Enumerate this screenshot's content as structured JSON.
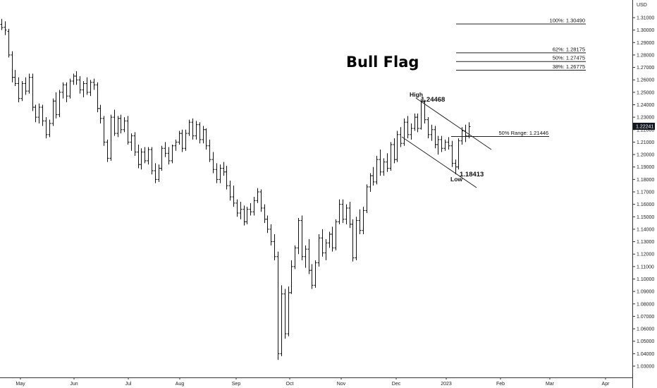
{
  "chart_data": {
    "type": "ohlc",
    "title": "Bull Flag",
    "currency_label": "USD",
    "price_marker": "1.22241",
    "y_range": [
      1.025,
      1.3175
    ],
    "y_ticks": [
      "1.31000",
      "1.30000",
      "1.29000",
      "1.28000",
      "1.27000",
      "1.26000",
      "1.25000",
      "1.24000",
      "1.23000",
      "1.22000",
      "1.21000",
      "1.20000",
      "1.19000",
      "1.18000",
      "1.17000",
      "1.16000",
      "1.15000",
      "1.14000",
      "1.13000",
      "1.12000",
      "1.11000",
      "1.10000",
      "1.09000",
      "1.08000",
      "1.07000",
      "1.06000",
      "1.05000",
      "1.04000",
      "1.03000"
    ],
    "x_tick_labels": [
      "May",
      "Jun",
      "Jul",
      "Aug",
      "Sep",
      "Oct",
      "Nov",
      "Dec",
      "2023",
      "Feb",
      "Mar",
      "Apr"
    ],
    "fib_levels": [
      {
        "label": "100%: 1.30490",
        "value": 1.3049
      },
      {
        "label": "62%: 1.28175",
        "value": 1.28175
      },
      {
        "label": "50%: 1.27475",
        "value": 1.27475
      },
      {
        "label": "38%: 1.26775",
        "value": 1.26775
      }
    ],
    "range_line": {
      "label": "50% Range: 1.21446",
      "value": 1.21446
    },
    "annotations": {
      "high": "High",
      "high_value": "1.24468",
      "low": "Low",
      "low_value": "1.18413"
    },
    "bars": [
      [
        1.3046,
        1.309,
        1.3,
        1.302
      ],
      [
        1.3023,
        1.307,
        1.296,
        1.3
      ],
      [
        1.299,
        1.301,
        1.278,
        1.28
      ],
      [
        1.28,
        1.283,
        1.258,
        1.262
      ],
      [
        1.262,
        1.268,
        1.255,
        1.257
      ],
      [
        1.257,
        1.262,
        1.242,
        1.245
      ],
      [
        1.245,
        1.259,
        1.243,
        1.257
      ],
      [
        1.257,
        1.262,
        1.248,
        1.251
      ],
      [
        1.251,
        1.265,
        1.249,
        1.262
      ],
      [
        1.262,
        1.265,
        1.235,
        1.238
      ],
      [
        1.238,
        1.24,
        1.226,
        1.23
      ],
      [
        1.23,
        1.241,
        1.225,
        1.238
      ],
      [
        1.238,
        1.24,
        1.223,
        1.227
      ],
      [
        1.227,
        1.23,
        1.213,
        1.216
      ],
      [
        1.216,
        1.228,
        1.214,
        1.225
      ],
      [
        1.225,
        1.245,
        1.223,
        1.243
      ],
      [
        1.243,
        1.25,
        1.229,
        1.232
      ],
      [
        1.232,
        1.252,
        1.23,
        1.25
      ],
      [
        1.25,
        1.258,
        1.245,
        1.256
      ],
      [
        1.256,
        1.258,
        1.242,
        1.247
      ],
      [
        1.247,
        1.261,
        1.245,
        1.259
      ],
      [
        1.259,
        1.265,
        1.256,
        1.263
      ],
      [
        1.263,
        1.267,
        1.256,
        1.26
      ],
      [
        1.26,
        1.263,
        1.249,
        1.252
      ],
      [
        1.252,
        1.259,
        1.246,
        1.257
      ],
      [
        1.257,
        1.262,
        1.248,
        1.25
      ],
      [
        1.25,
        1.26,
        1.247,
        1.258
      ],
      [
        1.258,
        1.261,
        1.252,
        1.256
      ],
      [
        1.256,
        1.258,
        1.234,
        1.237
      ],
      [
        1.237,
        1.24,
        1.225,
        1.229
      ],
      [
        1.229,
        1.231,
        1.207,
        1.21
      ],
      [
        1.21,
        1.212,
        1.194,
        1.197
      ],
      [
        1.197,
        1.232,
        1.195,
        1.23
      ],
      [
        1.23,
        1.236,
        1.215,
        1.217
      ],
      [
        1.217,
        1.231,
        1.214,
        1.229
      ],
      [
        1.229,
        1.232,
        1.217,
        1.22
      ],
      [
        1.22,
        1.23,
        1.218,
        1.227
      ],
      [
        1.227,
        1.231,
        1.208,
        1.21
      ],
      [
        1.21,
        1.217,
        1.203,
        1.215
      ],
      [
        1.215,
        1.218,
        1.199,
        1.202
      ],
      [
        1.202,
        1.208,
        1.189,
        1.192
      ],
      [
        1.192,
        1.205,
        1.188,
        1.202
      ],
      [
        1.202,
        1.206,
        1.193,
        1.195
      ],
      [
        1.195,
        1.206,
        1.192,
        1.204
      ],
      [
        1.204,
        1.206,
        1.184,
        1.187
      ],
      [
        1.187,
        1.193,
        1.177,
        1.18
      ],
      [
        1.18,
        1.192,
        1.178,
        1.189
      ],
      [
        1.189,
        1.207,
        1.187,
        1.205
      ],
      [
        1.205,
        1.21,
        1.198,
        1.201
      ],
      [
        1.201,
        1.206,
        1.192,
        1.195
      ],
      [
        1.195,
        1.208,
        1.193,
        1.207
      ],
      [
        1.207,
        1.212,
        1.203,
        1.21
      ],
      [
        1.21,
        1.219,
        1.208,
        1.217
      ],
      [
        1.217,
        1.22,
        1.202,
        1.205
      ],
      [
        1.205,
        1.22,
        1.203,
        1.217
      ],
      [
        1.217,
        1.228,
        1.215,
        1.226
      ],
      [
        1.226,
        1.229,
        1.212,
        1.215
      ],
      [
        1.215,
        1.227,
        1.212,
        1.224
      ],
      [
        1.224,
        1.226,
        1.209,
        1.212
      ],
      [
        1.212,
        1.223,
        1.209,
        1.22
      ],
      [
        1.22,
        1.221,
        1.204,
        1.207
      ],
      [
        1.207,
        1.212,
        1.194,
        1.196
      ],
      [
        1.196,
        1.202,
        1.185,
        1.188
      ],
      [
        1.188,
        1.193,
        1.177,
        1.18
      ],
      [
        1.18,
        1.192,
        1.177,
        1.189
      ],
      [
        1.189,
        1.194,
        1.183,
        1.186
      ],
      [
        1.186,
        1.191,
        1.172,
        1.175
      ],
      [
        1.175,
        1.179,
        1.163,
        1.166
      ],
      [
        1.166,
        1.175,
        1.158,
        1.161
      ],
      [
        1.161,
        1.164,
        1.15,
        1.153
      ],
      [
        1.153,
        1.162,
        1.148,
        1.156
      ],
      [
        1.156,
        1.159,
        1.143,
        1.146
      ],
      [
        1.146,
        1.158,
        1.144,
        1.156
      ],
      [
        1.156,
        1.161,
        1.151,
        1.154
      ],
      [
        1.154,
        1.166,
        1.151,
        1.163
      ],
      [
        1.163,
        1.173,
        1.161,
        1.17
      ],
      [
        1.17,
        1.172,
        1.154,
        1.157
      ],
      [
        1.157,
        1.16,
        1.145,
        1.148
      ],
      [
        1.148,
        1.151,
        1.137,
        1.14
      ],
      [
        1.14,
        1.144,
        1.127,
        1.13
      ],
      [
        1.13,
        1.136,
        1.115,
        1.118
      ],
      [
        1.118,
        1.122,
        1.035,
        1.04
      ],
      [
        1.04,
        1.095,
        1.038,
        1.088
      ],
      [
        1.088,
        1.092,
        1.052,
        1.056
      ],
      [
        1.056,
        1.094,
        1.054,
        1.089
      ],
      [
        1.089,
        1.115,
        1.088,
        1.11
      ],
      [
        1.11,
        1.127,
        1.108,
        1.125
      ],
      [
        1.125,
        1.149,
        1.12,
        1.147
      ],
      [
        1.147,
        1.151,
        1.115,
        1.118
      ],
      [
        1.118,
        1.127,
        1.109,
        1.124
      ],
      [
        1.124,
        1.132,
        1.104,
        1.107
      ],
      [
        1.107,
        1.112,
        1.092,
        1.095
      ],
      [
        1.095,
        1.115,
        1.093,
        1.113
      ],
      [
        1.113,
        1.136,
        1.11,
        1.133
      ],
      [
        1.133,
        1.14,
        1.118,
        1.121
      ],
      [
        1.121,
        1.132,
        1.115,
        1.129
      ],
      [
        1.129,
        1.138,
        1.125,
        1.136
      ],
      [
        1.136,
        1.142,
        1.122,
        1.125
      ],
      [
        1.125,
        1.148,
        1.123,
        1.146
      ],
      [
        1.146,
        1.164,
        1.144,
        1.16
      ],
      [
        1.16,
        1.164,
        1.145,
        1.148
      ],
      [
        1.148,
        1.16,
        1.144,
        1.157
      ],
      [
        1.157,
        1.162,
        1.141,
        1.144
      ],
      [
        1.144,
        1.148,
        1.114,
        1.117
      ],
      [
        1.117,
        1.15,
        1.115,
        1.147
      ],
      [
        1.147,
        1.156,
        1.136,
        1.139
      ],
      [
        1.139,
        1.158,
        1.136,
        1.155
      ],
      [
        1.155,
        1.176,
        1.153,
        1.174
      ],
      [
        1.174,
        1.185,
        1.17,
        1.183
      ],
      [
        1.183,
        1.19,
        1.175,
        1.178
      ],
      [
        1.178,
        1.199,
        1.176,
        1.196
      ],
      [
        1.196,
        1.204,
        1.183,
        1.186
      ],
      [
        1.186,
        1.197,
        1.183,
        1.194
      ],
      [
        1.194,
        1.201,
        1.186,
        1.189
      ],
      [
        1.189,
        1.21,
        1.187,
        1.208
      ],
      [
        1.208,
        1.213,
        1.193,
        1.196
      ],
      [
        1.196,
        1.219,
        1.194,
        1.216
      ],
      [
        1.216,
        1.222,
        1.206,
        1.209
      ],
      [
        1.209,
        1.229,
        1.207,
        1.226
      ],
      [
        1.226,
        1.231,
        1.213,
        1.216
      ],
      [
        1.216,
        1.225,
        1.212,
        1.221
      ],
      [
        1.221,
        1.233,
        1.219,
        1.23
      ],
      [
        1.23,
        1.233,
        1.218,
        1.221
      ],
      [
        1.221,
        1.2447,
        1.22,
        1.242
      ],
      [
        1.242,
        1.244,
        1.225,
        1.228
      ],
      [
        1.228,
        1.23,
        1.213,
        1.216
      ],
      [
        1.216,
        1.224,
        1.211,
        1.22
      ],
      [
        1.22,
        1.223,
        1.205,
        1.208
      ],
      [
        1.208,
        1.215,
        1.2,
        1.212
      ],
      [
        1.212,
        1.215,
        1.202,
        1.205
      ],
      [
        1.205,
        1.212,
        1.203,
        1.21
      ],
      [
        1.21,
        1.214,
        1.204,
        1.207
      ],
      [
        1.207,
        1.211,
        1.19,
        1.193
      ],
      [
        1.193,
        1.196,
        1.1841,
        1.19
      ],
      [
        1.19,
        1.213,
        1.188,
        1.211
      ],
      [
        1.211,
        1.222,
        1.208,
        1.219
      ],
      [
        1.219,
        1.224,
        1.21,
        1.215
      ],
      [
        1.215,
        1.226,
        1.213,
        1.2224
      ]
    ]
  }
}
